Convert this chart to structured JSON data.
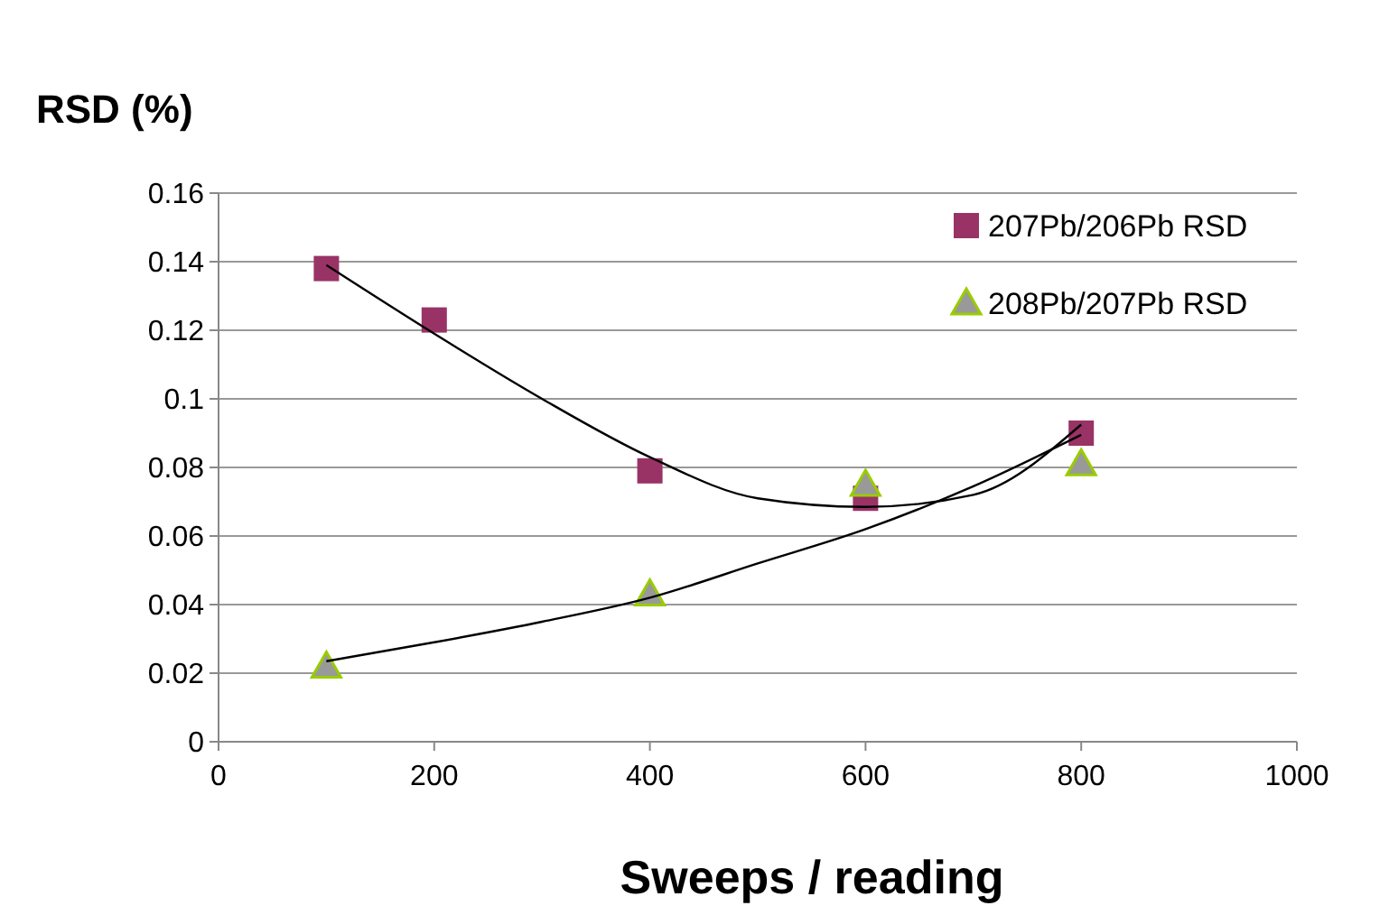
{
  "chart_data": {
    "type": "scatter",
    "xlabel": "Sweeps / reading",
    "ylabel": "RSD (%)",
    "xlim": [
      0,
      1000
    ],
    "xticks": [
      0,
      200,
      400,
      600,
      800,
      1000
    ],
    "ylim": [
      0,
      0.16
    ],
    "yticks": [
      0,
      0.02,
      0.04,
      0.06,
      0.08,
      0.1,
      0.12,
      0.14,
      0.16
    ],
    "grid": "y",
    "legend": "top right",
    "series": [
      {
        "name": "207Pb/206Pb RSD",
        "marker": "square",
        "color": "#993366",
        "x": [
          100,
          200,
          400,
          600,
          800
        ],
        "values": [
          0.138,
          0.123,
          0.079,
          0.071,
          0.09
        ]
      },
      {
        "name": "208Pb/207Pb RSD",
        "marker": "triangle",
        "color": "#999999",
        "x": [
          100,
          400,
          600,
          800
        ],
        "values": [
          0.022,
          0.043,
          0.075,
          0.081
        ]
      },
      {
        "type": "line",
        "marker": "none",
        "color": "#000000",
        "x": [
          100,
          200,
          300,
          400,
          500,
          600,
          700,
          800
        ],
        "values": [
          0.139,
          0.119,
          0.1,
          0.083,
          0.071,
          0.0685,
          0.072,
          0.0925
        ]
      },
      {
        "type": "line",
        "marker": "none",
        "color": "#000000",
        "x": [
          100,
          200,
          300,
          400,
          500,
          600,
          700,
          800
        ],
        "values": [
          0.0235,
          0.029,
          0.035,
          0.042,
          0.052,
          0.062,
          0.0745,
          0.0895
        ]
      }
    ]
  }
}
